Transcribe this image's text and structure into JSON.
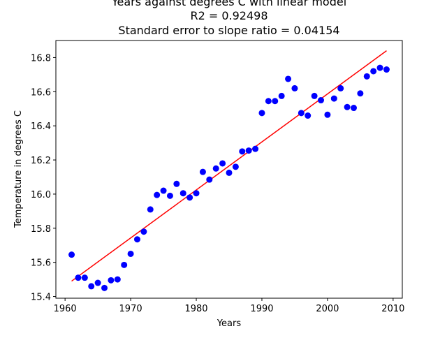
{
  "chart_data": {
    "type": "scatter",
    "title_lines": [
      "Years against degrees C with linear model",
      "R2 = 0.92498",
      "Standard error to slope ratio = 0.04154"
    ],
    "xlabel": "Years",
    "ylabel": "Temperature in degrees C",
    "xlim": [
      1958.6,
      2011.4
    ],
    "ylim": [
      15.39,
      16.9
    ],
    "xticks": [
      1960,
      1970,
      1980,
      1990,
      2000,
      2010
    ],
    "yticks": [
      15.4,
      15.6,
      15.8,
      16.0,
      16.2,
      16.4,
      16.6,
      16.8
    ],
    "grid": false,
    "points_color": "#0000ff",
    "fit_color": "#ff0000",
    "x": [
      1961,
      1962,
      1963,
      1964,
      1965,
      1966,
      1967,
      1968,
      1969,
      1970,
      1971,
      1972,
      1973,
      1974,
      1975,
      1976,
      1977,
      1978,
      1979,
      1980,
      1981,
      1982,
      1983,
      1984,
      1985,
      1986,
      1987,
      1988,
      1989,
      1990,
      1991,
      1992,
      1993,
      1994,
      1995,
      1996,
      1997,
      1998,
      1999,
      2000,
      2001,
      2002,
      2003,
      2004,
      2005,
      2006,
      2007,
      2008,
      2009
    ],
    "y": [
      15.645,
      15.51,
      15.51,
      15.46,
      15.48,
      15.45,
      15.495,
      15.5,
      15.585,
      15.65,
      15.735,
      15.78,
      15.91,
      15.995,
      16.02,
      15.99,
      16.06,
      16.005,
      15.98,
      16.005,
      16.13,
      16.085,
      16.15,
      16.18,
      16.125,
      16.16,
      16.25,
      16.255,
      16.265,
      16.475,
      16.545,
      16.545,
      16.575,
      16.675,
      16.62,
      16.475,
      16.46,
      16.575,
      16.55,
      16.465,
      16.56,
      16.62,
      16.51,
      16.505,
      16.59,
      16.69,
      16.72,
      16.74,
      16.73
    ],
    "fit_line": {
      "x": [
        1961,
        2009
      ],
      "y": [
        15.49,
        16.84
      ]
    }
  }
}
